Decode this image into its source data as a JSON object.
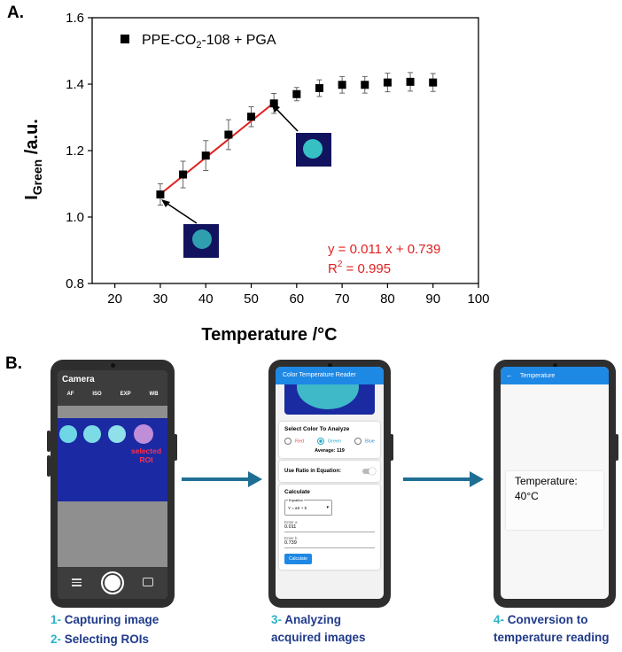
{
  "panel_a_label": "A.",
  "panel_b_label": "B.",
  "chart_data": {
    "type": "scatter",
    "xlabel": "Temperature /°C",
    "ylabel_main": "I",
    "ylabel_sub": "Green",
    "ylabel_rest": " /a.u.",
    "xlim": [
      15,
      100
    ],
    "ylim": [
      0.8,
      1.6
    ],
    "xticks": [
      "20",
      "30",
      "40",
      "50",
      "60",
      "70",
      "80",
      "90",
      "100"
    ],
    "yticks": [
      "0.8",
      "1.0",
      "1.2",
      "1.4",
      "1.6"
    ],
    "legend_parts": [
      "PPE-CO",
      "2",
      "-108 + PGA"
    ],
    "series": [
      {
        "name": "PPE-CO2-108 + PGA",
        "x": [
          30,
          35,
          40,
          45,
          50,
          55,
          60,
          65,
          70,
          75,
          80,
          85,
          90
        ],
        "y": [
          1.068,
          1.128,
          1.185,
          1.248,
          1.302,
          1.342,
          1.37,
          1.388,
          1.398,
          1.398,
          1.405,
          1.407,
          1.405
        ],
        "err": [
          0.032,
          0.04,
          0.045,
          0.045,
          0.03,
          0.03,
          0.02,
          0.025,
          0.025,
          0.025,
          0.028,
          0.028,
          0.027
        ]
      }
    ],
    "fit": {
      "x": [
        30,
        55
      ],
      "slope": 0.011,
      "intercept": 0.739,
      "color": "#e02020"
    },
    "fit_eq": "y = 0.011 x + 0.739",
    "fit_r2_parts": [
      "R",
      "2",
      " = 0.995"
    ],
    "grid": false
  },
  "phone1": {
    "title": "Camera",
    "modes": [
      "AF",
      "ISO",
      "EXP",
      "WB"
    ],
    "roi_label_1": "selected",
    "roi_label_2": "ROI"
  },
  "phone2": {
    "title": "Color Temperature Reader",
    "select_heading": "Select Color To Analyze",
    "options": [
      "Red",
      "Green",
      "Blue"
    ],
    "average": "Average: 119",
    "ratio_label": "Use Ratio in Equation:",
    "calc_heading": "Calculate",
    "equation_label": "Equation",
    "equation_value": "Y = aX + b",
    "enter_a_label": "Enter a",
    "a_value": "0.011",
    "enter_b_label": "Enter b",
    "b_value": "0.739",
    "calc_button": "Calculate"
  },
  "phone3": {
    "title": "Temperature",
    "temp_label": "Temperature:",
    "temp_value": "40°C"
  },
  "captions": {
    "c1_num": "1-",
    "c1_text": " Capturing image",
    "c2_num": "2-",
    "c2_text": " Selecting ROIs",
    "c3_num": "3-",
    "c3_text": " Analyzing",
    "c3_text2": "acquired images",
    "c4_num": "4-",
    "c4_text": " Conversion to",
    "c4_text2": "temperature reading"
  }
}
